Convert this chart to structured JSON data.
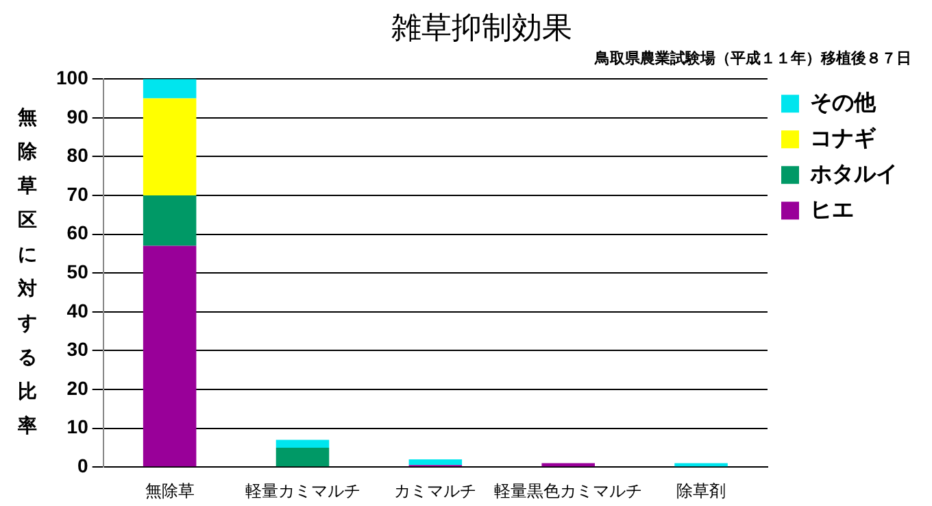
{
  "chart_data": {
    "type": "bar",
    "title": "雑草抑制効果",
    "subtitle": "鳥取県農業試験場（平成１１年）移植後８７日",
    "ylabel": "無除草区に対する比率",
    "categories": [
      "無除草",
      "軽量カミマルチ",
      "カミマルチ",
      "軽量黒色カミマルチ",
      "除草剤"
    ],
    "stacked": true,
    "series": [
      {
        "name": "ヒエ",
        "color": "#990099",
        "values": [
          57,
          0,
          0.5,
          1,
          0
        ]
      },
      {
        "name": "ホタルイ",
        "color": "#009966",
        "values": [
          13,
          5,
          0,
          0,
          0
        ]
      },
      {
        "name": "コナギ",
        "color": "#ffff00",
        "values": [
          25,
          0,
          0,
          0,
          0
        ]
      },
      {
        "name": "その他",
        "color": "#00e5ee",
        "values": [
          5,
          2,
          1.5,
          0,
          1
        ]
      }
    ],
    "ylim": [
      0,
      100
    ],
    "yticks": [
      0,
      10,
      20,
      30,
      40,
      50,
      60,
      70,
      80,
      90,
      100
    ],
    "grid": "y",
    "legend": "top right"
  }
}
